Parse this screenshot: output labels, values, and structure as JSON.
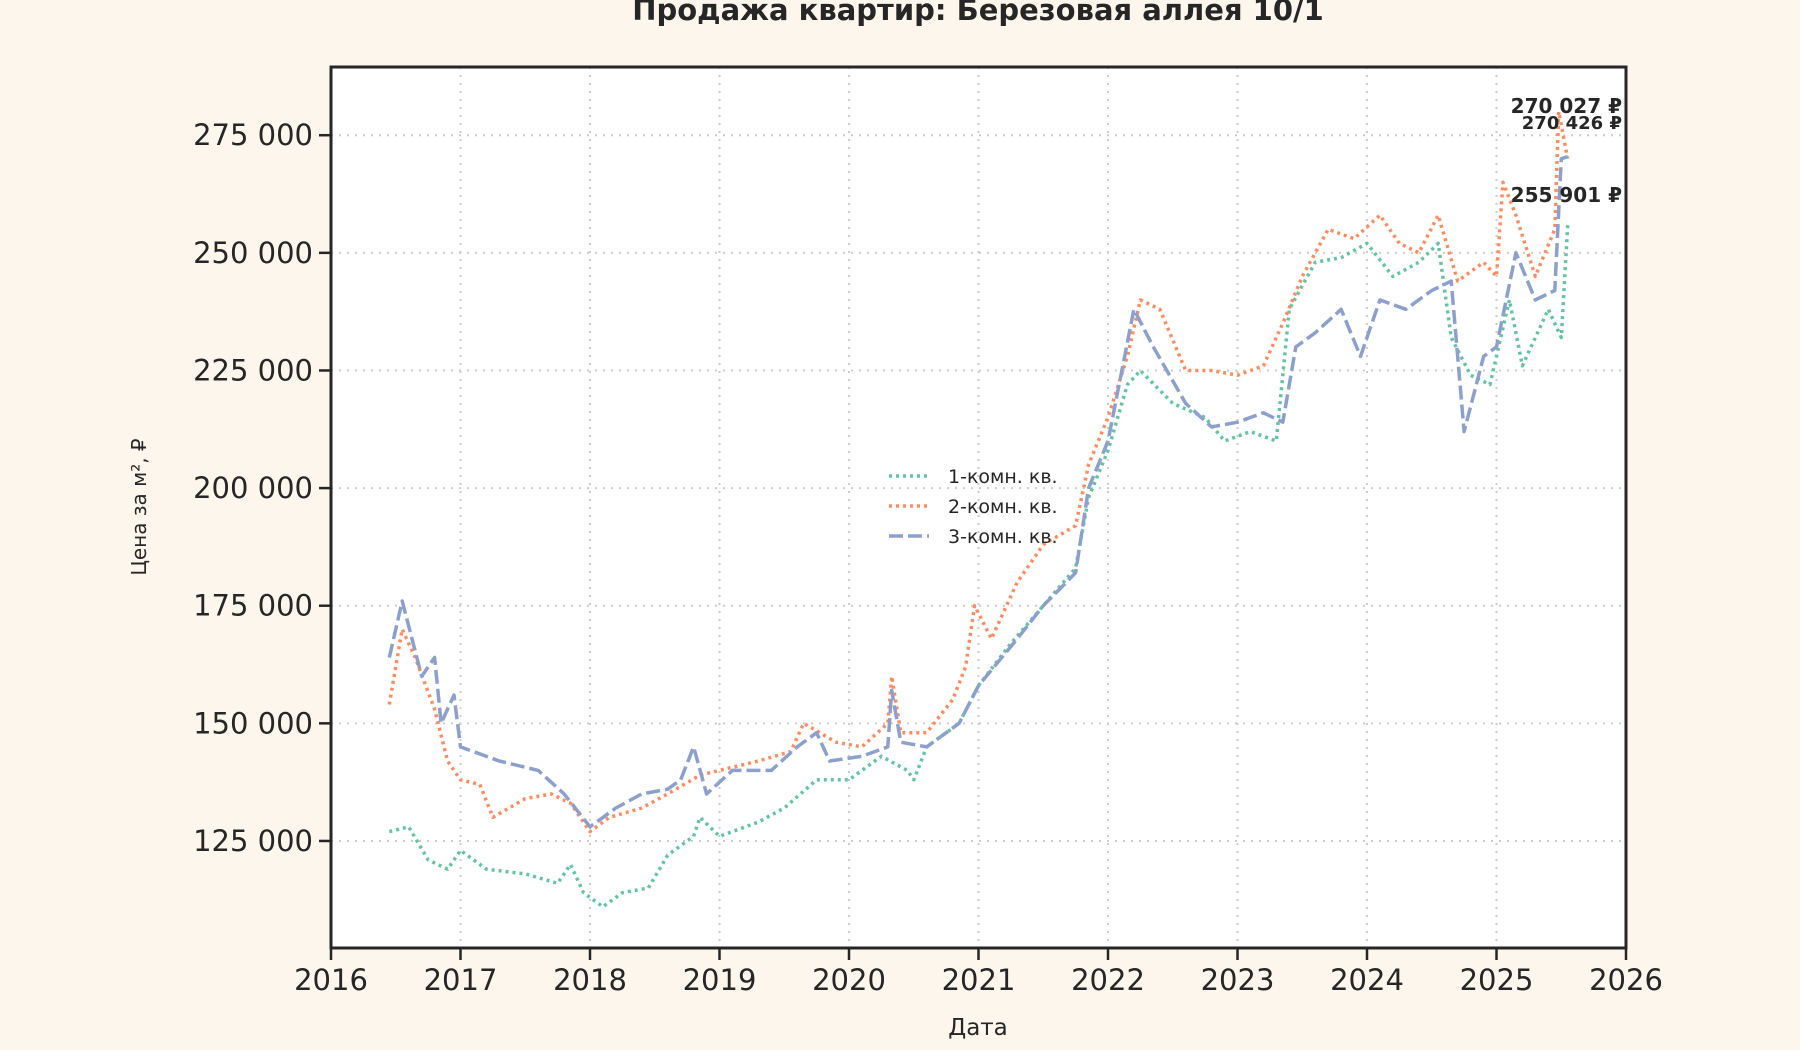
{
  "chart_data": {
    "type": "line",
    "title": "Продажа квартир: Березовая аллея 10/1",
    "xlabel": "Дата",
    "ylabel": "Цена за м², ₽",
    "xlim": [
      2016,
      2026
    ],
    "ylim": [
      102250,
      289500
    ],
    "xticks": [
      2016,
      2017,
      2018,
      2019,
      2020,
      2021,
      2022,
      2023,
      2024,
      2025,
      2026
    ],
    "xtick_labels": [
      "2016",
      "2017",
      "2018",
      "2019",
      "2020",
      "2021",
      "2022",
      "2023",
      "2024",
      "2025",
      "2026"
    ],
    "yticks": [
      125000,
      150000,
      175000,
      200000,
      225000,
      250000,
      275000
    ],
    "ytick_labels": [
      "125 000",
      "150 000",
      "175 000",
      "200 000",
      "225 000",
      "250 000",
      "275 000"
    ],
    "grid": true,
    "legend_placement": "center",
    "series": [
      {
        "name": "1-комн. кв.",
        "color": "#66c2a5",
        "style": "dotted",
        "x": [
          2016.45,
          2016.6,
          2016.75,
          2016.9,
          2017.0,
          2017.2,
          2017.5,
          2017.75,
          2017.85,
          2017.95,
          2018.1,
          2018.25,
          2018.45,
          2018.6,
          2018.8,
          2018.85,
          2019.0,
          2019.3,
          2019.5,
          2019.75,
          2020.0,
          2020.25,
          2020.45,
          2020.5,
          2020.6,
          2020.85,
          2021.0,
          2021.25,
          2021.5,
          2021.75,
          2021.85,
          2022.0,
          2022.15,
          2022.25,
          2022.5,
          2022.75,
          2022.9,
          2023.1,
          2023.3,
          2023.4,
          2023.6,
          2023.8,
          2024.0,
          2024.2,
          2024.4,
          2024.55,
          2024.65,
          2024.8,
          2024.95,
          2025.1,
          2025.2,
          2025.4,
          2025.5,
          2025.55
        ],
        "y": [
          127000,
          128000,
          121000,
          119000,
          123000,
          119000,
          118000,
          116000,
          120000,
          114000,
          111000,
          114000,
          115000,
          122000,
          126000,
          130000,
          126000,
          129000,
          132000,
          138000,
          138000,
          143000,
          140000,
          138000,
          145000,
          150000,
          158000,
          167000,
          175000,
          183000,
          198000,
          208000,
          222000,
          225000,
          218000,
          215000,
          210000,
          212000,
          210000,
          238000,
          248000,
          249000,
          252000,
          245000,
          248000,
          252000,
          232000,
          224000,
          222000,
          240000,
          226000,
          238000,
          232000,
          255901
        ]
      },
      {
        "name": "2-комн. кв.",
        "color": "#fc8d62",
        "style": "dotted",
        "x": [
          2016.45,
          2016.55,
          2016.65,
          2016.8,
          2016.9,
          2017.0,
          2017.15,
          2017.25,
          2017.5,
          2017.7,
          2017.85,
          2018.0,
          2018.15,
          2018.4,
          2018.6,
          2018.85,
          2019.0,
          2019.3,
          2019.55,
          2019.65,
          2019.9,
          2020.1,
          2020.3,
          2020.33,
          2020.4,
          2020.6,
          2020.8,
          2020.9,
          2020.97,
          2021.1,
          2021.3,
          2021.5,
          2021.75,
          2021.85,
          2022.0,
          2022.15,
          2022.25,
          2022.4,
          2022.6,
          2022.8,
          2023.0,
          2023.2,
          2023.35,
          2023.5,
          2023.7,
          2023.9,
          2024.1,
          2024.25,
          2024.4,
          2024.55,
          2024.7,
          2024.9,
          2025.0,
          2025.05,
          2025.15,
          2025.3,
          2025.45,
          2025.48,
          2025.55
        ],
        "y": [
          154000,
          170000,
          164000,
          153000,
          142000,
          138000,
          137000,
          130000,
          134000,
          135000,
          133000,
          127000,
          130000,
          132000,
          135000,
          139000,
          140000,
          142000,
          144000,
          150000,
          146000,
          145000,
          150000,
          160000,
          148000,
          148000,
          155000,
          162000,
          175000,
          168000,
          180000,
          188000,
          192000,
          205000,
          215000,
          228000,
          240000,
          238000,
          225000,
          225000,
          224000,
          226000,
          235000,
          245000,
          255000,
          253000,
          258000,
          252000,
          250000,
          258000,
          244000,
          248000,
          245000,
          265000,
          258000,
          245000,
          255000,
          280000,
          270027
        ]
      },
      {
        "name": "3-комн. кв.",
        "color": "#8da0cb",
        "style": "dashed",
        "x": [
          2016.45,
          2016.55,
          2016.7,
          2016.8,
          2016.85,
          2016.95,
          2017.0,
          2017.3,
          2017.6,
          2017.8,
          2018.0,
          2018.2,
          2018.4,
          2018.6,
          2018.7,
          2018.8,
          2018.9,
          2019.1,
          2019.4,
          2019.6,
          2019.75,
          2019.85,
          2020.1,
          2020.3,
          2020.33,
          2020.4,
          2020.6,
          2020.85,
          2021.0,
          2021.3,
          2021.5,
          2021.75,
          2021.85,
          2022.0,
          2022.2,
          2022.35,
          2022.6,
          2022.8,
          2023.0,
          2023.2,
          2023.35,
          2023.45,
          2023.6,
          2023.8,
          2023.95,
          2024.1,
          2024.3,
          2024.5,
          2024.65,
          2024.75,
          2024.9,
          2025.0,
          2025.15,
          2025.3,
          2025.45,
          2025.5,
          2025.55
        ],
        "y": [
          164000,
          176000,
          160000,
          164000,
          150000,
          156000,
          145000,
          142000,
          140000,
          135000,
          128000,
          132000,
          135000,
          136000,
          138000,
          145000,
          135000,
          140000,
          140000,
          145000,
          148000,
          142000,
          143000,
          145000,
          157000,
          146000,
          145000,
          150000,
          158000,
          168000,
          175000,
          182000,
          200000,
          210000,
          238000,
          230000,
          218000,
          213000,
          214000,
          216000,
          214000,
          230000,
          233000,
          238000,
          228000,
          240000,
          238000,
          242000,
          244000,
          212000,
          228000,
          230000,
          250000,
          240000,
          242000,
          270000,
          270426
        ]
      }
    ],
    "annotations": [
      {
        "text": "270 027 ₽",
        "color": "#fc8d62",
        "value": 270027
      },
      {
        "text": "270 426 ₽",
        "color": "#8da0cb",
        "value": 270426
      },
      {
        "text": "255 901 ₽",
        "color": "#66c2a5",
        "value": 255901
      }
    ]
  }
}
